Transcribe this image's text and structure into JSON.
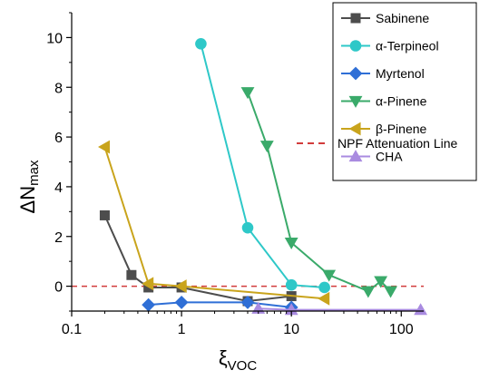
{
  "chart_data": {
    "type": "line",
    "x_scale": "log",
    "xlim": [
      0.1,
      160
    ],
    "ylim": [
      -1,
      11
    ],
    "x_ticks": [
      0.1,
      1,
      10,
      100
    ],
    "x_tick_labels": [
      "0.1",
      "1",
      "10",
      "100"
    ],
    "y_ticks": [
      0,
      2,
      4,
      6,
      8,
      10
    ],
    "y_tick_labels": [
      "0",
      "2",
      "4",
      "6",
      "8",
      "10"
    ],
    "xlabel": {
      "main": "ξ",
      "sub": "VOC"
    },
    "ylabel": {
      "main": "ΔN",
      "sub": "max"
    },
    "grid": false,
    "legend_position": "top-right",
    "series": [
      {
        "name": "Sabinene",
        "color": "#4d4d4d",
        "marker": "square",
        "x": [
          0.2,
          0.35,
          0.5,
          1,
          4,
          10
        ],
        "y": [
          2.85,
          0.45,
          -0.05,
          -0.05,
          -0.6,
          -0.4
        ]
      },
      {
        "name": "α-Terpineol",
        "color": "#2ec8c8",
        "marker": "circle",
        "x": [
          1.5,
          4,
          10,
          20
        ],
        "y": [
          9.75,
          2.35,
          0.05,
          -0.05
        ]
      },
      {
        "name": "Myrtenol",
        "color": "#2f6fd6",
        "marker": "diamond",
        "x": [
          0.5,
          1,
          4,
          10
        ],
        "y": [
          -0.75,
          -0.65,
          -0.65,
          -0.85
        ]
      },
      {
        "name": "α-Pinene",
        "color": "#3aaa6a",
        "marker": "triangle-down",
        "x": [
          4,
          6,
          10,
          22,
          50,
          65,
          80
        ],
        "y": [
          7.8,
          5.65,
          1.75,
          0.45,
          -0.2,
          0.2,
          -0.2
        ]
      },
      {
        "name": "β-Pinene",
        "color": "#c9a41c",
        "marker": "triangle-left",
        "x": [
          0.2,
          0.5,
          1,
          20
        ],
        "y": [
          5.6,
          0.1,
          0.0,
          -0.5
        ]
      },
      {
        "name": "CHA",
        "color": "#a98be0",
        "marker": "triangle-up",
        "x": [
          5,
          10,
          150
        ],
        "y": [
          -0.9,
          -0.95,
          -0.95
        ]
      }
    ],
    "reference_line": {
      "label": "NPF Attenuation Line",
      "y": 0,
      "color": "#d23b3b",
      "style": "dashed"
    }
  }
}
